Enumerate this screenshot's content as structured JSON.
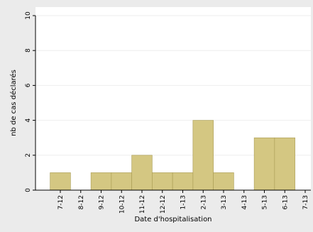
{
  "chart_data": {
    "type": "bar",
    "xlabel": "Date d'hospitalisation",
    "ylabel": "nb de cas déclarés",
    "ylim": [
      0,
      10
    ],
    "yticks": [
      "0",
      "2",
      "4",
      "6",
      "8",
      "10"
    ],
    "categories": [
      "7-12",
      "8-12",
      "9-12",
      "10-12",
      "11-12",
      "12-12",
      "1-13",
      "2-13",
      "3-13",
      "4-13",
      "5-13",
      "6-13",
      "7-13"
    ],
    "bars": [
      {
        "month": "7-12",
        "value": 1
      },
      {
        "month": "9-12",
        "value": 1
      },
      {
        "month": "10-12",
        "value": 1
      },
      {
        "month": "11-12",
        "value": 2
      },
      {
        "month": "12-12",
        "value": 1
      },
      {
        "month": "1-13",
        "value": 1
      },
      {
        "month": "2-13",
        "value": 4
      },
      {
        "month": "3-13",
        "value": 1
      },
      {
        "month": "5-13",
        "value": 3
      },
      {
        "month": "6-13",
        "value": 3
      }
    ],
    "grid": true,
    "legend": "none",
    "colors": {
      "bar_fill": "#d4c782",
      "bar_stroke": "#a89a52",
      "plot_background": "#ffffff",
      "page_background": "#ebebeb",
      "gridline": "#eeeeee",
      "axis": "#000000"
    }
  }
}
